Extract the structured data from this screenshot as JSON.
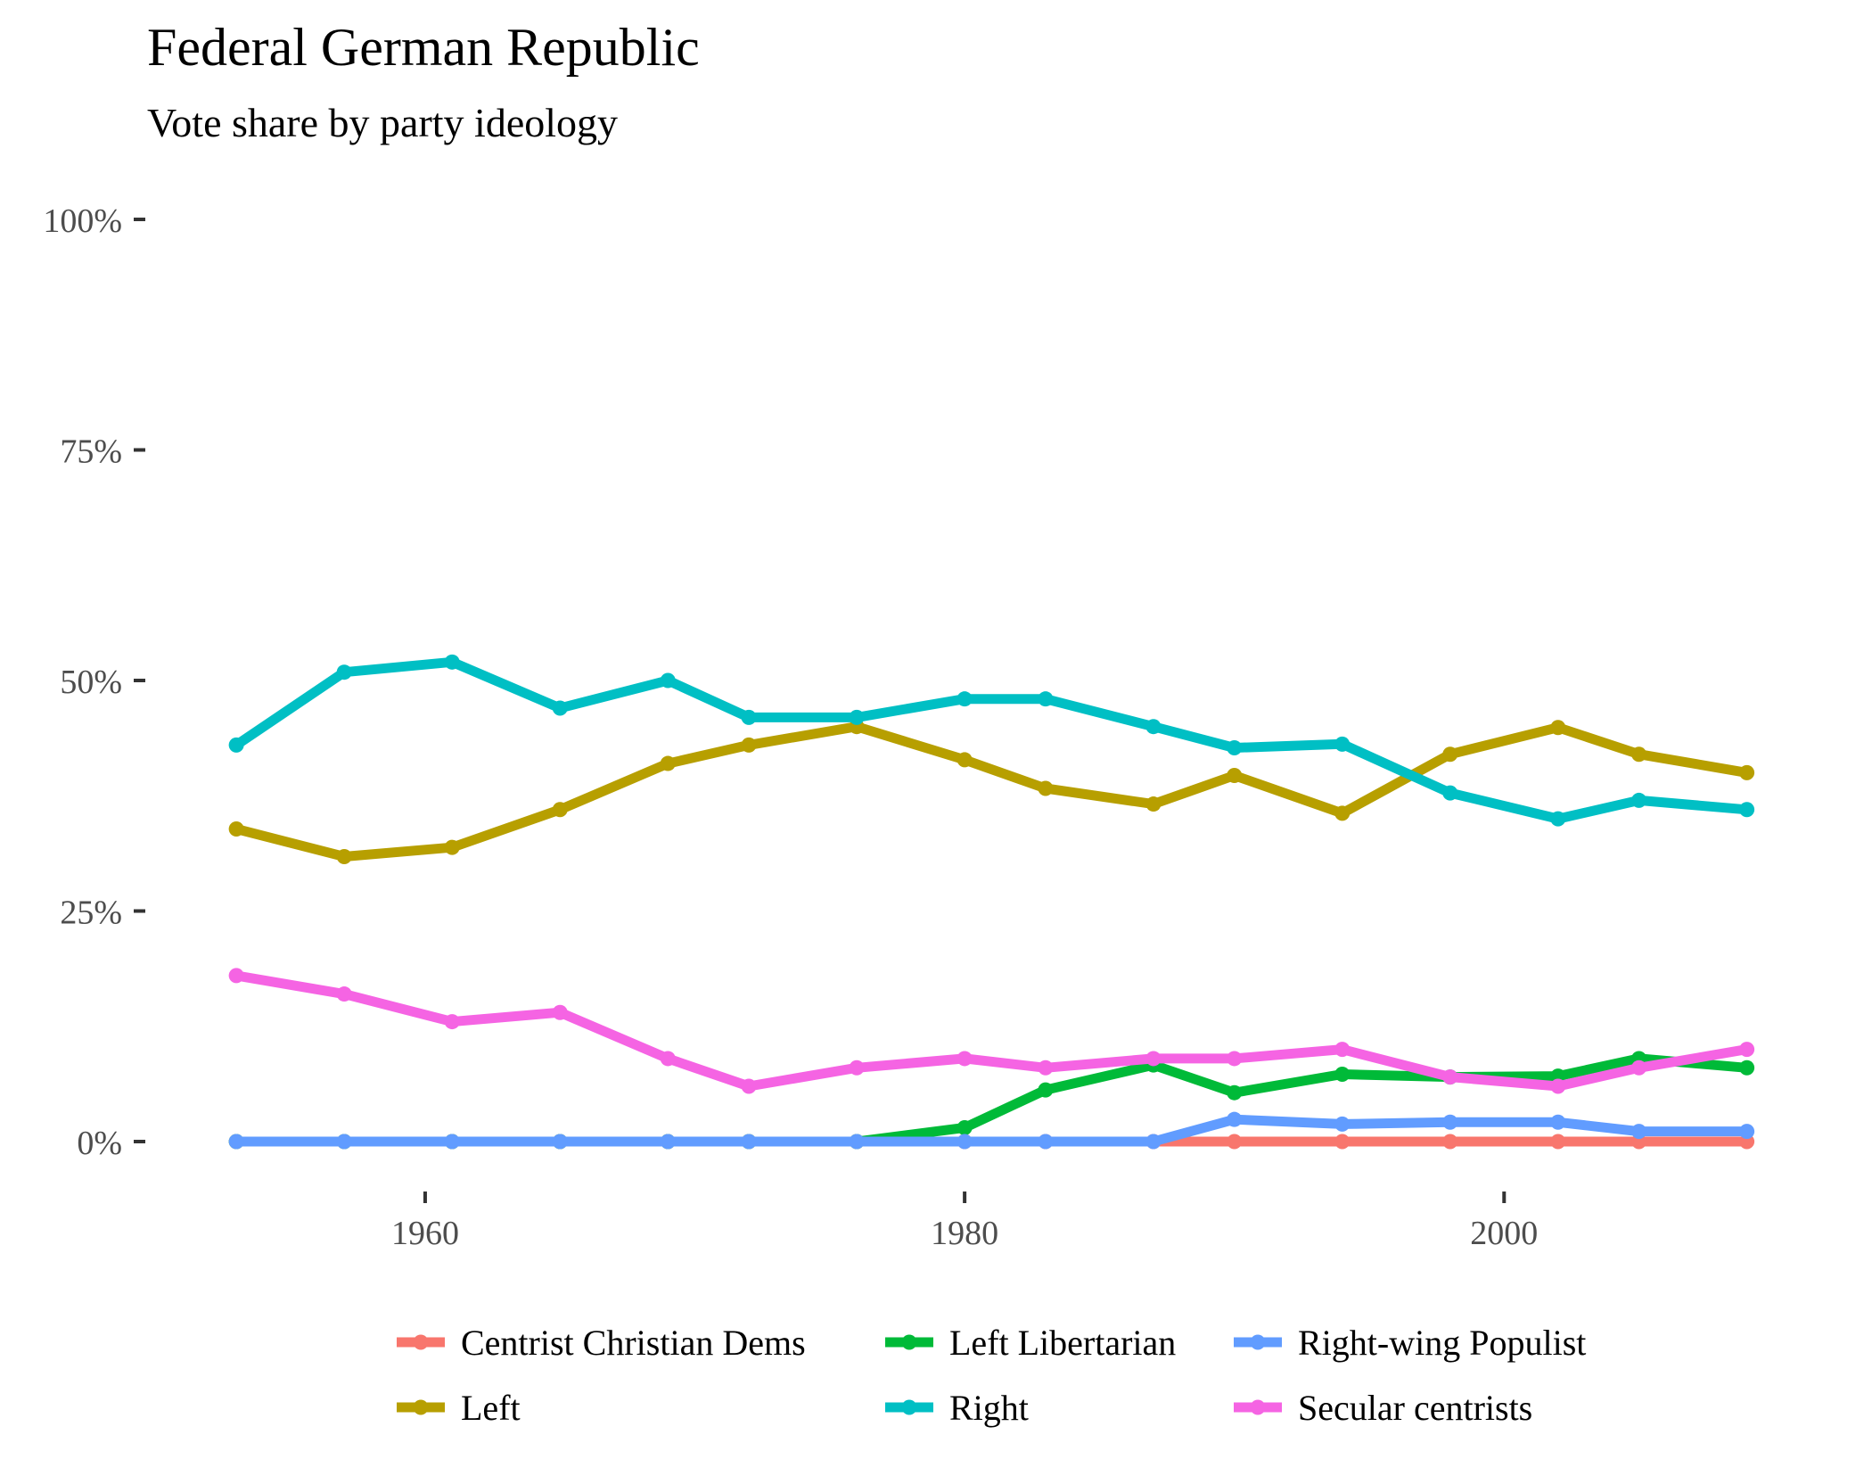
{
  "chart_data": {
    "type": "line",
    "title": "Federal German Republic",
    "subtitle": "Vote share by party ideology",
    "xlabel": "",
    "ylabel": "",
    "xlim": [
      1952.5,
      2010.5
    ],
    "ylim": [
      0,
      100
    ],
    "x_ticks": [
      1960,
      1980,
      2000
    ],
    "x_tick_labels": [
      "1960",
      "1980",
      "2000"
    ],
    "y_ticks": [
      0,
      25,
      50,
      75,
      100
    ],
    "y_tick_labels": [
      "0%",
      "25%",
      "50%",
      "75%",
      "100%"
    ],
    "grid": false,
    "legend_position": "bottom",
    "x": [
      1953,
      1957,
      1961,
      1965,
      1969,
      1972,
      1976,
      1980,
      1983,
      1987,
      1990,
      1994,
      1998,
      2002,
      2005,
      2009
    ],
    "series": [
      {
        "name": "Centrist Christian Dems",
        "color": "#F8766D",
        "values": [
          0,
          0,
          0,
          0,
          0,
          0,
          0,
          0,
          0,
          0,
          0,
          0,
          0,
          0,
          0,
          0
        ]
      },
      {
        "name": "Left",
        "color": "#B79F00",
        "values": [
          33.9,
          30.9,
          31.9,
          36,
          41,
          43,
          45,
          41.4,
          38.3,
          36.6,
          39.7,
          35.6,
          42,
          44.9,
          42,
          40
        ]
      },
      {
        "name": "Left Libertarian",
        "color": "#00BA38",
        "values": [
          0,
          0,
          0,
          0,
          0,
          0,
          0,
          1.5,
          5.6,
          8.3,
          5.3,
          7.3,
          7,
          7.1,
          9,
          8
        ]
      },
      {
        "name": "Right",
        "color": "#00BFC4",
        "values": [
          43,
          50.9,
          52,
          47,
          50,
          46,
          46,
          48,
          48,
          45,
          42.7,
          43.1,
          37.8,
          35,
          37,
          36
        ]
      },
      {
        "name": "Right-wing Populist",
        "color": "#619CFF",
        "values": [
          0,
          0,
          0,
          0,
          0,
          0,
          0,
          0,
          0,
          0,
          2.4,
          1.9,
          2.1,
          2.1,
          1.1,
          1.1
        ]
      },
      {
        "name": "Secular centrists",
        "color": "#F564E3",
        "values": [
          18,
          16,
          13,
          14,
          9,
          6,
          8,
          9,
          8,
          9,
          9,
          10,
          7,
          6,
          8,
          10
        ]
      }
    ],
    "legend_order": [
      "Centrist Christian Dems",
      "Left Libertarian",
      "Right-wing Populist",
      "Left",
      "Right",
      "Secular centrists"
    ]
  }
}
